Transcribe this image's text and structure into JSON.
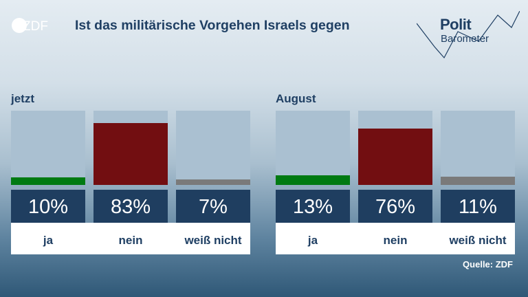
{
  "header": {
    "title": "Ist das militärische Vorgehen Israels gegen",
    "logo_text": "ZDF",
    "brand_top": "Polit",
    "brand_bottom": "Barometer"
  },
  "source": "Quelle: ZDF",
  "colors": {
    "ja": "#007a12",
    "nein": "#720e11",
    "weiss_nicht": "#7a7a7a",
    "value_box": "#1f3e60",
    "bar_background": "#aac0d1"
  },
  "chart_data": [
    {
      "type": "bar",
      "title": "jetzt",
      "categories": [
        "ja",
        "nein",
        "weiß nicht"
      ],
      "values": [
        10,
        83,
        7
      ],
      "value_labels": [
        "10%",
        "83%",
        "7%"
      ],
      "ylim": [
        0,
        100
      ]
    },
    {
      "type": "bar",
      "title": "August",
      "categories": [
        "ja",
        "nein",
        "weiß nicht"
      ],
      "values": [
        13,
        76,
        11
      ],
      "value_labels": [
        "13%",
        "76%",
        "11%"
      ],
      "ylim": [
        0,
        100
      ]
    }
  ]
}
